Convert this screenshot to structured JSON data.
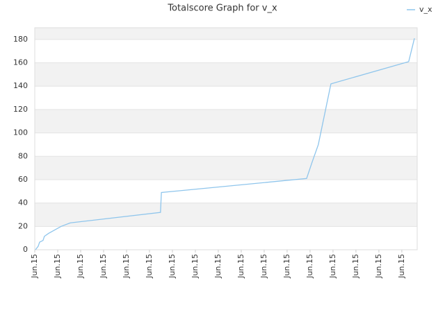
{
  "chart_data": {
    "type": "line",
    "title": "Totalscore Graph for v_x",
    "x": [
      0.03,
      0.15,
      0.21,
      0.36,
      0.42,
      0.6,
      1.15,
      1.55,
      5.48,
      5.52,
      11.85,
      12.09,
      12.36,
      12.91,
      16.3,
      16.55
    ],
    "series": [
      {
        "name": "v_x",
        "color": "#8ec5ec",
        "values": [
          0,
          3,
          6.5,
          8,
          11.5,
          14,
          20,
          23,
          32,
          49,
          61,
          75,
          90,
          142,
          161,
          181
        ]
      }
    ],
    "xlim": [
      0,
      16.67
    ],
    "xticks": [
      {
        "value": 0,
        "label": "Jun.15"
      },
      {
        "value": 1,
        "label": "Jun.15"
      },
      {
        "value": 2,
        "label": "Jun.15"
      },
      {
        "value": 3,
        "label": "Jun.15"
      },
      {
        "value": 4,
        "label": "Jun.15"
      },
      {
        "value": 5,
        "label": "Jun.15"
      },
      {
        "value": 6,
        "label": "Jun.15"
      },
      {
        "value": 7,
        "label": "Jun.15"
      },
      {
        "value": 8,
        "label": "Jun.15"
      },
      {
        "value": 9,
        "label": "Jun.15"
      },
      {
        "value": 10,
        "label": "Jun.15"
      },
      {
        "value": 11,
        "label": "Jun.15"
      },
      {
        "value": 12,
        "label": "Jun.15"
      },
      {
        "value": 13,
        "label": "Jun.15"
      },
      {
        "value": 14,
        "label": "Jun.15"
      },
      {
        "value": 15,
        "label": "Jun.15"
      },
      {
        "value": 16,
        "label": "Jun.15"
      }
    ],
    "ylim": [
      0,
      190
    ],
    "yticks": [
      0,
      20,
      40,
      60,
      80,
      100,
      120,
      140,
      160,
      180
    ],
    "grid": true,
    "legend": "top-right"
  }
}
